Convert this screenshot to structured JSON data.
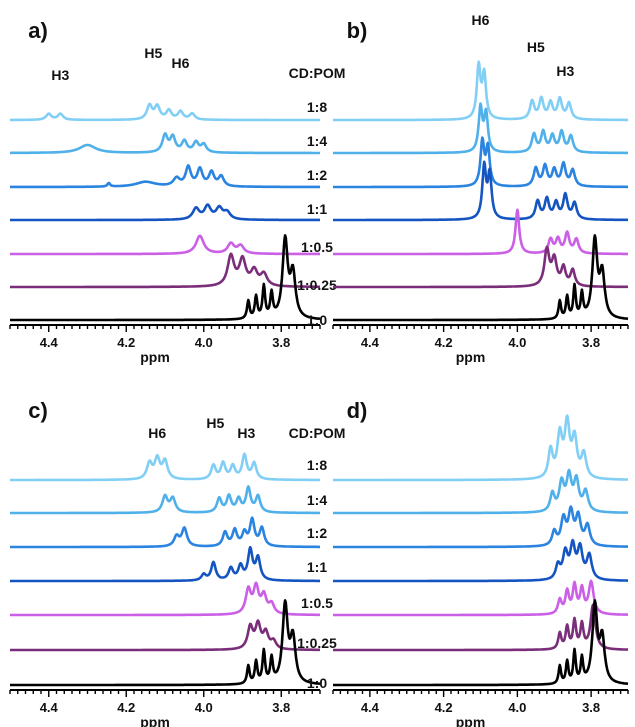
{
  "chart_data": [
    {
      "panel": "a)",
      "type": "line",
      "xlabel": "ppm",
      "xlim": [
        4.5,
        3.7
      ],
      "x_reversed": true,
      "ticks": [
        {
          "value": 4.4,
          "label": "4.4"
        },
        {
          "value": 4.2,
          "label": "4.2"
        },
        {
          "value": 4.0,
          "label": "4.0"
        },
        {
          "value": 3.8,
          "label": "3.8"
        }
      ],
      "ratio_header": "CD:POM",
      "peak_labels": [
        {
          "text": "H3",
          "x": 4.37,
          "level": 0
        },
        {
          "text": "H5",
          "x": 4.13,
          "level": 1
        },
        {
          "text": "H6",
          "x": 4.06,
          "level": 2
        }
      ],
      "series": [
        {
          "name": "1:8",
          "color": "#82cff5",
          "peaks": [
            [
              4.4,
              0.3,
              0.008
            ],
            [
              4.37,
              0.3,
              0.008
            ],
            [
              4.14,
              0.7,
              0.008
            ],
            [
              4.12,
              0.65,
              0.008
            ],
            [
              4.09,
              0.45,
              0.008
            ],
            [
              4.06,
              0.4,
              0.008
            ],
            [
              4.03,
              0.3,
              0.008
            ]
          ]
        },
        {
          "name": "1:4",
          "color": "#4fb0ea",
          "peaks": [
            [
              4.3,
              0.4,
              0.025
            ],
            [
              4.1,
              0.85,
              0.008
            ],
            [
              4.08,
              0.75,
              0.008
            ],
            [
              4.05,
              0.55,
              0.008
            ],
            [
              4.02,
              0.5,
              0.008
            ],
            [
              4.0,
              0.4,
              0.008
            ]
          ]
        },
        {
          "name": "1:2",
          "color": "#2a84e0",
          "peaks": [
            [
              4.245,
              0.18,
              0.004
            ],
            [
              4.15,
              0.25,
              0.03
            ],
            [
              4.07,
              0.4,
              0.01
            ],
            [
              4.04,
              0.95,
              0.008
            ],
            [
              4.01,
              0.85,
              0.008
            ],
            [
              3.98,
              0.7,
              0.008
            ],
            [
              3.955,
              0.5,
              0.008
            ]
          ]
        },
        {
          "name": "1:1",
          "color": "#1555c2",
          "peaks": [
            [
              4.02,
              0.55,
              0.01
            ],
            [
              3.99,
              0.65,
              0.01
            ],
            [
              3.96,
              0.55,
              0.01
            ],
            [
              3.94,
              0.35,
              0.01
            ]
          ]
        },
        {
          "name": "1:0.5",
          "color": "#cb5fe6",
          "peaks": [
            [
              4.01,
              0.9,
              0.012
            ],
            [
              3.93,
              0.5,
              0.01
            ],
            [
              3.905,
              0.4,
              0.01
            ]
          ]
        },
        {
          "name": "1:0.25",
          "color": "#7a2e7a",
          "peaks": [
            [
              3.93,
              1.5,
              0.01
            ],
            [
              3.9,
              1.3,
              0.01
            ],
            [
              3.87,
              0.75,
              0.01
            ],
            [
              3.845,
              0.6,
              0.01
            ]
          ]
        },
        {
          "name": "1:0",
          "color": "#000000",
          "peaks": [
            [
              3.885,
              0.9,
              0.004
            ],
            [
              3.865,
              1.1,
              0.004
            ],
            [
              3.845,
              1.6,
              0.004
            ],
            [
              3.825,
              1.2,
              0.004
            ],
            [
              3.79,
              3.9,
              0.008
            ],
            [
              3.77,
              2.2,
              0.008
            ]
          ]
        }
      ]
    },
    {
      "panel": "b)",
      "type": "line",
      "xlabel": "ppm",
      "xlim": [
        4.5,
        3.7
      ],
      "x_reversed": true,
      "ticks": [
        {
          "value": 4.4,
          "label": "4.4"
        },
        {
          "value": 4.2,
          "label": "4.2"
        },
        {
          "value": 4.0,
          "label": "4.0"
        },
        {
          "value": 3.8,
          "label": "3.8"
        }
      ],
      "peak_labels": [
        {
          "text": "H6",
          "x": 4.1,
          "level": 0
        },
        {
          "text": "H5",
          "x": 3.95,
          "level": 2
        },
        {
          "text": "H3",
          "x": 3.87,
          "level": 1
        }
      ],
      "series": [
        {
          "name": "1:8",
          "color": "#82cff5",
          "peaks": [
            [
              4.105,
              2.6,
              0.006
            ],
            [
              4.09,
              2.2,
              0.006
            ],
            [
              3.96,
              0.9,
              0.007
            ],
            [
              3.935,
              1.0,
              0.007
            ],
            [
              3.91,
              0.8,
              0.007
            ],
            [
              3.885,
              1.0,
              0.007
            ],
            [
              3.86,
              0.8,
              0.007
            ]
          ]
        },
        {
          "name": "1:4",
          "color": "#4fb0ea",
          "peaks": [
            [
              4.1,
              2.2,
              0.006
            ],
            [
              4.085,
              1.9,
              0.006
            ],
            [
              3.955,
              0.9,
              0.007
            ],
            [
              3.93,
              1.0,
              0.007
            ],
            [
              3.905,
              0.8,
              0.007
            ],
            [
              3.88,
              1.0,
              0.007
            ],
            [
              3.855,
              0.8,
              0.007
            ]
          ]
        },
        {
          "name": "1:2",
          "color": "#2a84e0",
          "peaks": [
            [
              4.095,
              2.2,
              0.006
            ],
            [
              4.08,
              1.9,
              0.006
            ],
            [
              3.95,
              0.9,
              0.007
            ],
            [
              3.925,
              1.0,
              0.007
            ],
            [
              3.9,
              0.8,
              0.007
            ],
            [
              3.875,
              1.1,
              0.007
            ],
            [
              3.85,
              0.8,
              0.007
            ]
          ]
        },
        {
          "name": "1:1",
          "color": "#1555c2",
          "peaks": [
            [
              4.09,
              2.6,
              0.006
            ],
            [
              4.075,
              2.2,
              0.006
            ],
            [
              3.945,
              0.9,
              0.007
            ],
            [
              3.92,
              1.0,
              0.007
            ],
            [
              3.895,
              0.8,
              0.007
            ],
            [
              3.87,
              1.2,
              0.007
            ],
            [
              3.845,
              0.8,
              0.007
            ]
          ]
        },
        {
          "name": "1:0.5",
          "color": "#cb5fe6",
          "peaks": [
            [
              4.0,
              2.2,
              0.006
            ],
            [
              3.91,
              0.7,
              0.007
            ],
            [
              3.89,
              0.7,
              0.007
            ],
            [
              3.865,
              1.0,
              0.007
            ],
            [
              3.84,
              0.7,
              0.007
            ]
          ]
        },
        {
          "name": "1:0.25",
          "color": "#7a2e7a",
          "peaks": [
            [
              3.92,
              1.8,
              0.008
            ],
            [
              3.9,
              1.3,
              0.008
            ],
            [
              3.875,
              0.9,
              0.007
            ],
            [
              3.85,
              0.8,
              0.007
            ]
          ]
        },
        {
          "name": "1:0",
          "color": "#000000",
          "peaks": [
            [
              3.885,
              0.9,
              0.004
            ],
            [
              3.865,
              1.1,
              0.004
            ],
            [
              3.845,
              1.6,
              0.004
            ],
            [
              3.825,
              1.2,
              0.004
            ],
            [
              3.79,
              3.9,
              0.008
            ],
            [
              3.77,
              2.2,
              0.008
            ]
          ]
        }
      ]
    },
    {
      "panel": "c)",
      "type": "line",
      "xlabel": "ppm",
      "xlim": [
        4.5,
        3.7
      ],
      "x_reversed": true,
      "ticks": [
        {
          "value": 4.4,
          "label": "4.4"
        },
        {
          "value": 4.2,
          "label": "4.2"
        },
        {
          "value": 4.0,
          "label": "4.0"
        },
        {
          "value": 3.8,
          "label": "3.8"
        }
      ],
      "ratio_header": "CD:POM",
      "peak_labels": [
        {
          "text": "H6",
          "x": 4.12,
          "level": 0
        },
        {
          "text": "H5",
          "x": 3.97,
          "level": 1
        },
        {
          "text": "H3",
          "x": 3.89,
          "level": 0
        }
      ],
      "series": [
        {
          "name": "1:8",
          "color": "#82cff5",
          "peaks": [
            [
              4.14,
              0.8,
              0.008
            ],
            [
              4.12,
              1.0,
              0.008
            ],
            [
              4.1,
              0.9,
              0.008
            ],
            [
              3.975,
              0.7,
              0.007
            ],
            [
              3.95,
              0.8,
              0.007
            ],
            [
              3.925,
              0.65,
              0.007
            ],
            [
              3.895,
              1.2,
              0.007
            ],
            [
              3.87,
              0.8,
              0.007
            ]
          ]
        },
        {
          "name": "1:4",
          "color": "#4fb0ea",
          "peaks": [
            [
              4.1,
              0.8,
              0.008
            ],
            [
              4.08,
              0.7,
              0.008
            ],
            [
              3.96,
              0.7,
              0.007
            ],
            [
              3.935,
              0.8,
              0.007
            ],
            [
              3.91,
              0.65,
              0.007
            ],
            [
              3.885,
              1.2,
              0.007
            ],
            [
              3.86,
              0.8,
              0.007
            ]
          ]
        },
        {
          "name": "1:2",
          "color": "#2a84e0",
          "peaks": [
            [
              4.07,
              0.5,
              0.008
            ],
            [
              4.05,
              0.9,
              0.008
            ],
            [
              3.945,
              0.7,
              0.007
            ],
            [
              3.92,
              0.8,
              0.007
            ],
            [
              3.895,
              0.65,
              0.007
            ],
            [
              3.875,
              1.3,
              0.007
            ],
            [
              3.85,
              0.9,
              0.007
            ]
          ]
        },
        {
          "name": "1:1",
          "color": "#1555c2",
          "peaks": [
            [
              4.0,
              0.3,
              0.007
            ],
            [
              3.975,
              0.9,
              0.007
            ],
            [
              3.93,
              0.6,
              0.007
            ],
            [
              3.905,
              0.7,
              0.007
            ],
            [
              3.88,
              1.5,
              0.007
            ],
            [
              3.86,
              1.1,
              0.007
            ]
          ]
        },
        {
          "name": "1:0.5",
          "color": "#cb5fe6",
          "peaks": [
            [
              3.885,
              1.2,
              0.008
            ],
            [
              3.865,
              1.3,
              0.008
            ],
            [
              3.845,
              0.9,
              0.008
            ],
            [
              3.825,
              0.5,
              0.008
            ]
          ]
        },
        {
          "name": "1:0.25",
          "color": "#7a2e7a",
          "peaks": [
            [
              3.88,
              1.1,
              0.008
            ],
            [
              3.86,
              1.2,
              0.008
            ],
            [
              3.84,
              0.8,
              0.008
            ],
            [
              3.82,
              0.4,
              0.008
            ]
          ]
        },
        {
          "name": "1:0",
          "color": "#000000",
          "peaks": [
            [
              3.885,
              0.9,
              0.004
            ],
            [
              3.865,
              1.1,
              0.004
            ],
            [
              3.845,
              1.6,
              0.004
            ],
            [
              3.825,
              1.2,
              0.004
            ],
            [
              3.79,
              3.9,
              0.008
            ],
            [
              3.77,
              2.2,
              0.008
            ]
          ]
        }
      ]
    },
    {
      "panel": "d)",
      "type": "line",
      "xlabel": "ppm",
      "xlim": [
        4.5,
        3.7
      ],
      "x_reversed": true,
      "ticks": [
        {
          "value": 4.4,
          "label": "4.4"
        },
        {
          "value": 4.2,
          "label": "4.2"
        },
        {
          "value": 4.0,
          "label": "4.0"
        },
        {
          "value": 3.8,
          "label": "3.8"
        }
      ],
      "peak_labels": [],
      "series": [
        {
          "name": "1:8",
          "color": "#82cff5",
          "peaks": [
            [
              3.91,
              1.4,
              0.007
            ],
            [
              3.885,
              2.1,
              0.008
            ],
            [
              3.865,
              2.6,
              0.008
            ],
            [
              3.845,
              1.9,
              0.008
            ],
            [
              3.82,
              1.2,
              0.008
            ]
          ]
        },
        {
          "name": "1:4",
          "color": "#4fb0ea",
          "peaks": [
            [
              3.905,
              0.9,
              0.007
            ],
            [
              3.88,
              1.4,
              0.008
            ],
            [
              3.86,
              1.7,
              0.008
            ],
            [
              3.84,
              1.5,
              0.008
            ],
            [
              3.815,
              1.0,
              0.008
            ]
          ]
        },
        {
          "name": "1:2",
          "color": "#2a84e0",
          "peaks": [
            [
              3.9,
              0.7,
              0.007
            ],
            [
              3.875,
              1.3,
              0.008
            ],
            [
              3.855,
              1.6,
              0.008
            ],
            [
              3.835,
              1.4,
              0.008
            ],
            [
              3.81,
              1.0,
              0.008
            ]
          ]
        },
        {
          "name": "1:1",
          "color": "#1555c2",
          "peaks": [
            [
              3.89,
              0.7,
              0.007
            ],
            [
              3.87,
              1.3,
              0.008
            ],
            [
              3.85,
              1.6,
              0.008
            ],
            [
              3.83,
              1.5,
              0.008
            ],
            [
              3.805,
              1.2,
              0.008
            ]
          ]
        },
        {
          "name": "1:0.5",
          "color": "#cb5fe6",
          "peaks": [
            [
              3.885,
              0.7,
              0.006
            ],
            [
              3.865,
              1.1,
              0.006
            ],
            [
              3.845,
              1.4,
              0.006
            ],
            [
              3.825,
              1.2,
              0.006
            ],
            [
              3.8,
              1.6,
              0.008
            ]
          ]
        },
        {
          "name": "1:0.25",
          "color": "#7a2e7a",
          "peaks": [
            [
              3.885,
              0.8,
              0.005
            ],
            [
              3.865,
              1.1,
              0.005
            ],
            [
              3.845,
              1.4,
              0.005
            ],
            [
              3.825,
              1.2,
              0.005
            ],
            [
              3.795,
              2.2,
              0.008
            ]
          ]
        },
        {
          "name": "1:0",
          "color": "#000000",
          "peaks": [
            [
              3.885,
              0.9,
              0.004
            ],
            [
              3.865,
              1.1,
              0.004
            ],
            [
              3.845,
              1.6,
              0.004
            ],
            [
              3.825,
              1.2,
              0.004
            ],
            [
              3.79,
              3.9,
              0.008
            ],
            [
              3.77,
              2.2,
              0.008
            ]
          ]
        }
      ]
    }
  ]
}
